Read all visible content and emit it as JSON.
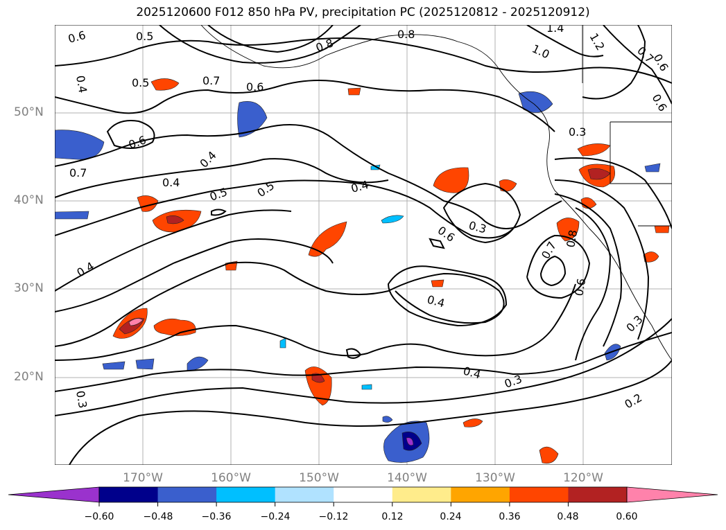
{
  "title": "2025120600 F012 850 hPa PV, precipitation PC (2025120812 - 2025120912)",
  "map": {
    "lat_labels": [
      "50°N",
      "40°N",
      "30°N",
      "20°N"
    ],
    "lon_labels": [
      "170°W",
      "160°W",
      "150°W",
      "140°W",
      "130°W",
      "120°W"
    ]
  },
  "contour_labels": [
    "0.6",
    "0.5",
    "0.8",
    "1.4",
    "1.2",
    "1.0",
    "0.7",
    "0.6",
    "0.8",
    "0.4",
    "0.5",
    "0.7",
    "0.6",
    "0.6",
    "0.7",
    "0.6",
    "0.4",
    "0.4",
    "0.5",
    "0.5",
    "0.4",
    "0.3",
    "0.6",
    "0.3",
    "0.4",
    "0.4",
    "0.7",
    "0.6",
    "0.3",
    "0.4",
    "0.3",
    "0.2",
    "0.3",
    "0.8"
  ],
  "colorbar": {
    "ticks": [
      "−0.60",
      "−0.48",
      "−0.36",
      "−0.24",
      "−0.12",
      "0.12",
      "0.24",
      "0.36",
      "0.48",
      "0.60"
    ],
    "colors": [
      "#9a32cd",
      "#00008b",
      "#3a5fcd",
      "#00bfff",
      "#b0e2ff",
      "#ffffff",
      "#ffec8b",
      "#ffa500",
      "#ff4500",
      "#b22222",
      "#ff82ab"
    ]
  }
}
